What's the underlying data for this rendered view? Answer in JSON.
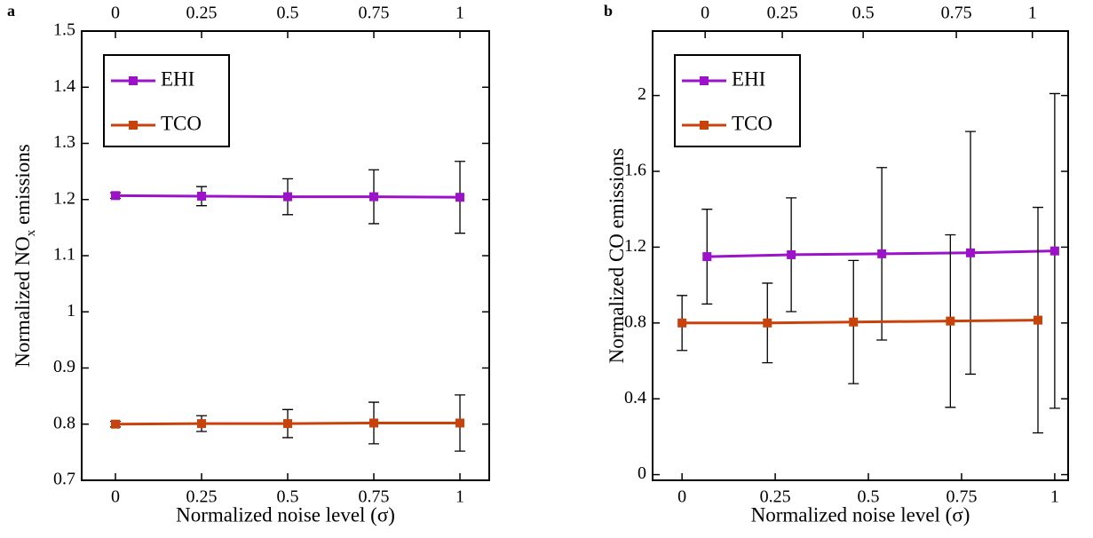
{
  "chart_data": [
    {
      "type": "line",
      "label": "a",
      "x_label": "Normalized noise level (σ)",
      "y_label": [
        "Normalized NO",
        "x",
        " emissions"
      ],
      "xlim": [
        -0.098,
        1.085
      ],
      "xticks": [
        0,
        0.25,
        0.5,
        0.75,
        1
      ],
      "x2ticks": [
        0,
        0.25,
        0.5,
        0.75,
        1
      ],
      "ylim": [
        0.7,
        1.5
      ],
      "yticks": [
        0.7,
        0.8,
        0.9,
        1,
        1.1,
        1.2,
        1.3,
        1.4,
        1.5
      ],
      "legend": "top-left",
      "series": [
        {
          "name": "EHI",
          "color": "#9b12c9",
          "x": [
            0,
            0.25,
            0.5,
            0.75,
            1
          ],
          "values": [
            1.207,
            1.206,
            1.205,
            1.205,
            1.204
          ],
          "errors": [
            0.005,
            0.017,
            0.032,
            0.048,
            0.064
          ]
        },
        {
          "name": "TCO",
          "color": "#c8420c",
          "x": [
            0,
            0.25,
            0.5,
            0.75,
            1
          ],
          "values": [
            0.8,
            0.801,
            0.801,
            0.802,
            0.802
          ],
          "errors": [
            0.005,
            0.014,
            0.025,
            0.037,
            0.05
          ]
        }
      ]
    },
    {
      "type": "line",
      "label": "b",
      "x_label": "Normalized noise level (σ)",
      "y_label": [
        "Normalized CO emissions"
      ],
      "xlim": [
        -0.079,
        1.036
      ],
      "xticks": [
        0,
        0.25,
        0.5,
        0.75,
        1
      ],
      "x2ticks": [
        {
          "value": 0.062,
          "label": "0"
        },
        {
          "value": 0.269,
          "label": "0.25"
        },
        {
          "value": 0.486,
          "label": "0.5"
        },
        {
          "value": 0.736,
          "label": "0.75"
        },
        {
          "value": 0.94,
          "label": "1"
        }
      ],
      "ylim": [
        -0.03,
        2.34
      ],
      "yticks": [
        0,
        0.4,
        0.8,
        1.2,
        1.6,
        2
      ],
      "legend": "top-left",
      "series": [
        {
          "name": "EHI",
          "color": "#9b12c9",
          "x": [
            0.067,
            0.293,
            0.536,
            0.774,
            1.0
          ],
          "values": [
            1.15,
            1.16,
            1.165,
            1.17,
            1.18
          ],
          "errors": [
            0.25,
            0.3,
            0.455,
            0.64,
            0.83
          ]
        },
        {
          "name": "TCO",
          "color": "#c8420c",
          "x": [
            0,
            0.229,
            0.46,
            0.72,
            0.955
          ],
          "values": [
            0.8,
            0.8,
            0.805,
            0.81,
            0.815
          ],
          "errors": [
            0.145,
            0.21,
            0.325,
            0.455,
            0.595
          ]
        }
      ]
    }
  ]
}
